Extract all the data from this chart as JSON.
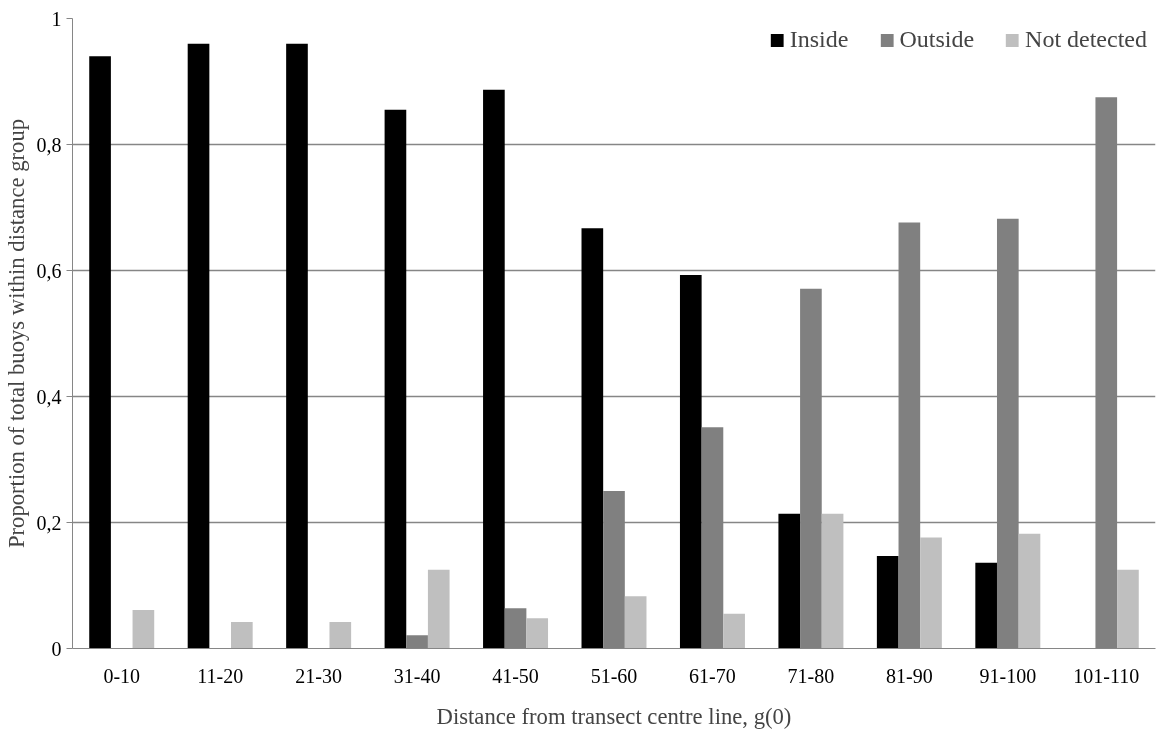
{
  "chart_data": {
    "type": "bar",
    "xlabel": "Distance from transect centre line, g(0)",
    "ylabel": "Proportion of total buoys within distance group",
    "categories": [
      "0-10",
      "11-20",
      "21-30",
      "31-40",
      "41-50",
      "51-60",
      "61-70",
      "71-80",
      "81-90",
      "91-100",
      "101-110"
    ],
    "series": [
      {
        "name": "Inside",
        "color": "#000000",
        "values": [
          0.94,
          0.96,
          0.96,
          0.855,
          0.887,
          0.667,
          0.593,
          0.214,
          0.147,
          0.136,
          0
        ]
      },
      {
        "name": "Outside",
        "color": "#808080",
        "values": [
          0,
          0,
          0,
          0.021,
          0.064,
          0.25,
          0.351,
          0.571,
          0.676,
          0.682,
          0.875
        ]
      },
      {
        "name": "Not detected",
        "color": "#bfbfbf",
        "values": [
          0.061,
          0.042,
          0.042,
          0.125,
          0.048,
          0.083,
          0.055,
          0.214,
          0.176,
          0.182,
          0.125
        ]
      }
    ],
    "ylim": [
      0,
      1
    ],
    "yticks": [
      {
        "value": 0,
        "label": "0"
      },
      {
        "value": 0.2,
        "label": "0,2"
      },
      {
        "value": 0.4,
        "label": "0,4"
      },
      {
        "value": 0.6,
        "label": "0,6"
      },
      {
        "value": 0.8,
        "label": "0,8"
      },
      {
        "value": 1,
        "label": "1"
      }
    ],
    "grid": "y",
    "legend": "top right"
  }
}
